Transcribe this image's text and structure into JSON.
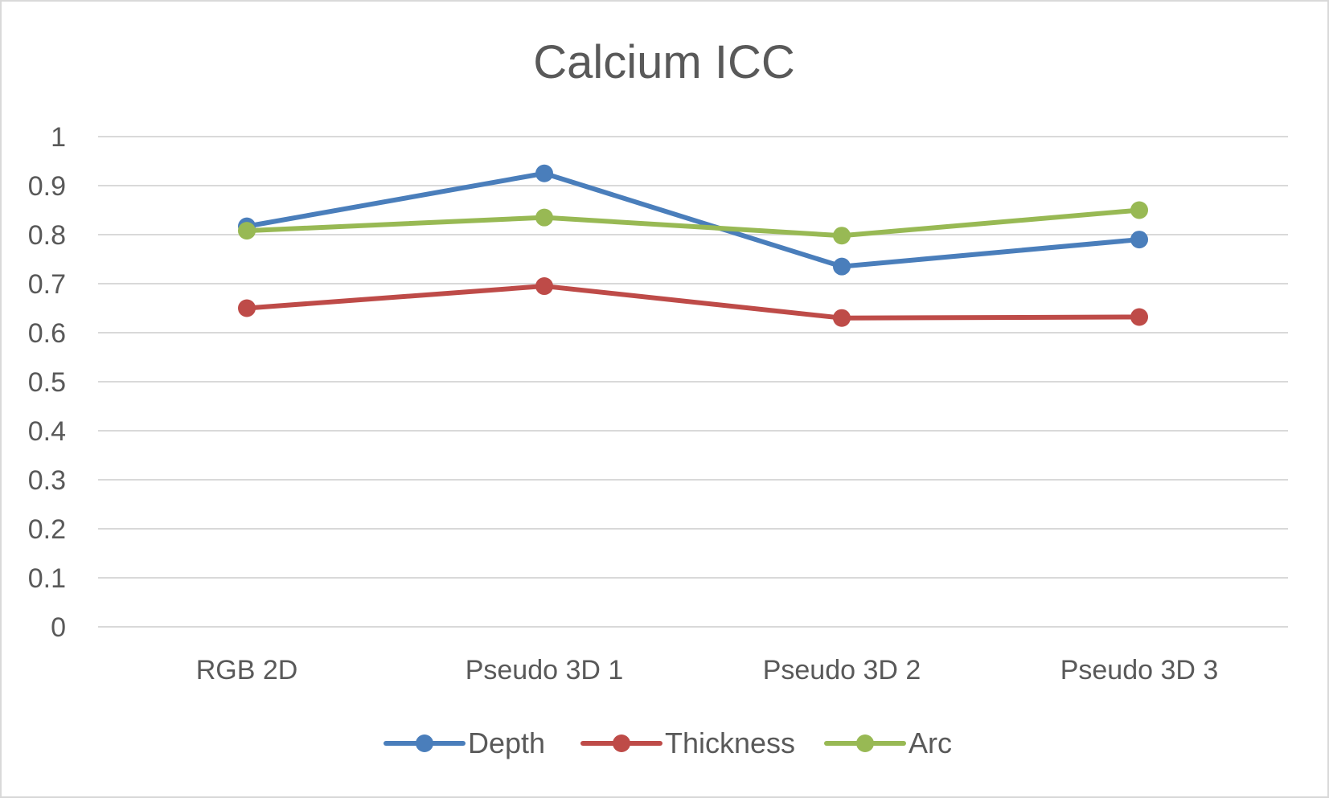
{
  "chart_data": {
    "type": "line",
    "title": "Calcium ICC",
    "xlabel": "",
    "ylabel": "",
    "categories": [
      "RGB 2D",
      "Pseudo 3D 1",
      "Pseudo 3D 2",
      "Pseudo 3D 3"
    ],
    "ylim": [
      0,
      1
    ],
    "yticks": [
      "0",
      "0.1",
      "0.2",
      "0.3",
      "0.4",
      "0.5",
      "0.6",
      "0.7",
      "0.8",
      "0.9",
      "1"
    ],
    "grid": true,
    "legend_position": "bottom",
    "series": [
      {
        "name": "Depth",
        "color": "#4a7ebb",
        "values": [
          0.817,
          0.925,
          0.735,
          0.79
        ]
      },
      {
        "name": "Thickness",
        "color": "#be4b48",
        "values": [
          0.65,
          0.695,
          0.63,
          0.632
        ]
      },
      {
        "name": "Arc",
        "color": "#98b954",
        "values": [
          0.808,
          0.835,
          0.798,
          0.85
        ]
      }
    ]
  }
}
